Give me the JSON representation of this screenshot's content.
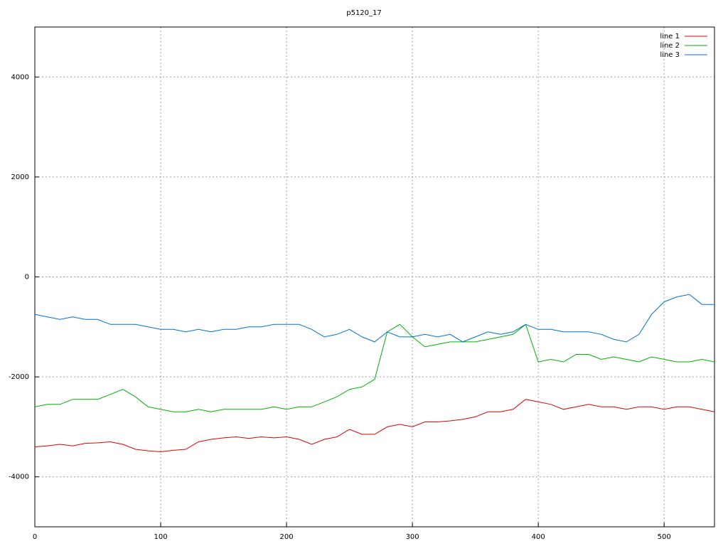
{
  "chart_data": {
    "type": "line",
    "title": "p5120_17",
    "x": [
      0,
      10,
      20,
      30,
      40,
      50,
      60,
      70,
      80,
      90,
      100,
      110,
      120,
      130,
      140,
      150,
      160,
      170,
      180,
      190,
      200,
      210,
      220,
      230,
      240,
      250,
      260,
      270,
      280,
      290,
      300,
      310,
      320,
      330,
      340,
      350,
      360,
      370,
      380,
      390,
      400,
      410,
      420,
      430,
      440,
      450,
      460,
      470,
      480,
      490,
      500,
      510,
      520,
      530,
      540
    ],
    "series": [
      {
        "name": "line 1",
        "color": "#e00000",
        "values": [
          -3400,
          -3380,
          -3350,
          -3380,
          -3330,
          -3320,
          -3300,
          -3350,
          -3450,
          -3480,
          -3500,
          -3470,
          -3450,
          -3300,
          -3250,
          -3220,
          -3200,
          -3230,
          -3200,
          -3220,
          -3200,
          -3250,
          -3350,
          -3250,
          -3200,
          -3050,
          -3150,
          -3150,
          -3000,
          -2950,
          -3000,
          -2900,
          -2900,
          -2880,
          -2850,
          -2800,
          -2700,
          -2700,
          -2650,
          -2450,
          -2500,
          -2550,
          -2650,
          -2600,
          -2550,
          -2600,
          -2600,
          -2650,
          -2600,
          -2600,
          -2650,
          -2600,
          -2600,
          -2650,
          -2700
        ]
      },
      {
        "name": "line 2",
        "color": "#00b000",
        "values": [
          -2600,
          -2550,
          -2550,
          -2450,
          -2450,
          -2450,
          -2350,
          -2250,
          -2400,
          -2600,
          -2650,
          -2700,
          -2700,
          -2650,
          -2700,
          -2650,
          -2650,
          -2650,
          -2650,
          -2600,
          -2650,
          -2600,
          -2600,
          -2500,
          -2400,
          -2250,
          -2200,
          -2050,
          -1100,
          -950,
          -1200,
          -1400,
          -1350,
          -1300,
          -1300,
          -1300,
          -1250,
          -1200,
          -1150,
          -950,
          -1700,
          -1650,
          -1700,
          -1550,
          -1550,
          -1650,
          -1600,
          -1650,
          -1700,
          -1600,
          -1650,
          -1700,
          -1700,
          -1650,
          -1700
        ]
      },
      {
        "name": "line 3",
        "color": "#0070d0",
        "values": [
          -750,
          -800,
          -850,
          -800,
          -850,
          -850,
          -950,
          -950,
          -950,
          -1000,
          -1050,
          -1050,
          -1100,
          -1050,
          -1100,
          -1050,
          -1050,
          -1000,
          -1000,
          -950,
          -950,
          -950,
          -1050,
          -1200,
          -1150,
          -1050,
          -1200,
          -1300,
          -1100,
          -1200,
          -1200,
          -1150,
          -1200,
          -1150,
          -1300,
          -1200,
          -1100,
          -1150,
          -1100,
          -950,
          -1050,
          -1050,
          -1100,
          -1100,
          -1100,
          -1150,
          -1250,
          -1300,
          -1150,
          -750,
          -500,
          -400,
          -350,
          -550,
          -550
        ]
      }
    ],
    "xlim": [
      0,
      540
    ],
    "xticks": [
      0,
      100,
      200,
      300,
      400,
      500
    ],
    "ylim": [
      -5000,
      5000
    ],
    "yticks": [
      -4000,
      -2000,
      0,
      2000,
      4000
    ],
    "grid": true,
    "legend": "top-right"
  }
}
